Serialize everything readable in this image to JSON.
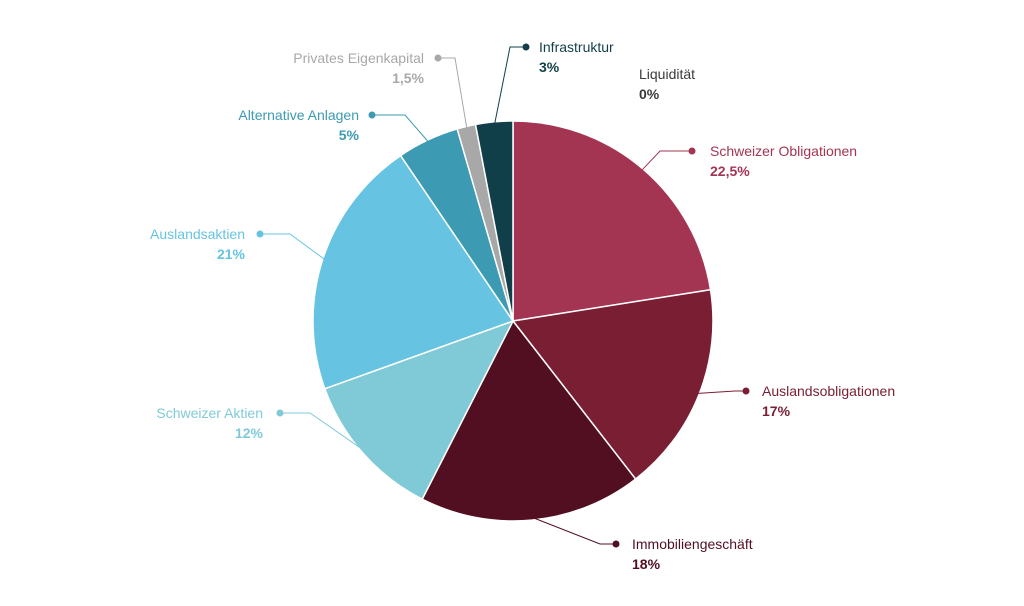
{
  "chart_data": {
    "type": "pie",
    "slices": [
      {
        "label": "Schweizer Obligationen",
        "value": 22.5,
        "value_label": "22,5%",
        "color": "#a33553"
      },
      {
        "label": "Auslandsobligationen",
        "value": 17,
        "value_label": "17%",
        "color": "#7a1e34"
      },
      {
        "label": "Immobiliengeschäft",
        "value": 18,
        "value_label": "18%",
        "color": "#520f21"
      },
      {
        "label": "Schweizer Aktien",
        "value": 12,
        "value_label": "12%",
        "color": "#80cad8"
      },
      {
        "label": "Auslandsaktien",
        "value": 21,
        "value_label": "21%",
        "color": "#66c4e2"
      },
      {
        "label": "Alternative Anlagen",
        "value": 5,
        "value_label": "5%",
        "color": "#3c9ab3"
      },
      {
        "label": "Privates Eigenkapital",
        "value": 1.5,
        "value_label": "1,5%",
        "color": "#a8a8a8"
      },
      {
        "label": "Infrastruktur",
        "value": 3,
        "value_label": "3%",
        "color": "#113f49"
      },
      {
        "label": "Liquidität",
        "value": 0,
        "value_label": "0%",
        "color": "#3a3a3a"
      }
    ]
  }
}
